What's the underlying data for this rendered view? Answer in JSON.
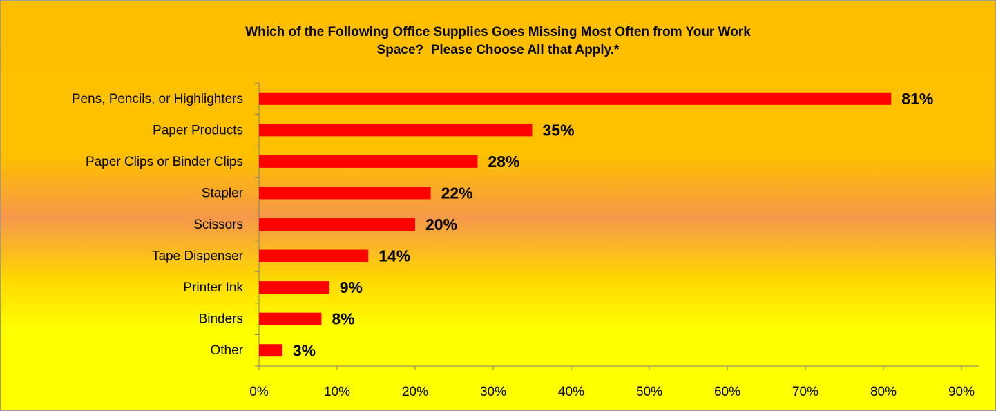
{
  "chart_data": {
    "type": "bar",
    "orientation": "horizontal",
    "title": "Which of the Following Office Supplies Goes Missing Most Often from Your Work Space?  Please Choose All that Apply.*",
    "categories": [
      "Pens, Pencils, or Highlighters",
      "Paper Products",
      "Paper Clips or Binder Clips",
      "Stapler",
      "Scissors",
      "Tape Dispenser",
      "Printer Ink",
      "Binders",
      "Other"
    ],
    "values": [
      81,
      35,
      28,
      22,
      20,
      14,
      9,
      8,
      3
    ],
    "value_labels": [
      "81%",
      "35%",
      "28%",
      "22%",
      "20%",
      "14%",
      "9%",
      "8%",
      "3%"
    ],
    "color": "#ff0000",
    "xlim": [
      0,
      90
    ],
    "xticks": [
      {
        "value": 0,
        "label": "0%"
      },
      {
        "value": 10,
        "label": "10%"
      },
      {
        "value": 20,
        "label": "20%"
      },
      {
        "value": 30,
        "label": "30%"
      },
      {
        "value": 40,
        "label": "40%"
      },
      {
        "value": 50,
        "label": "50%"
      },
      {
        "value": 60,
        "label": "60%"
      },
      {
        "value": 70,
        "label": "70%"
      },
      {
        "value": 80,
        "label": "80%"
      },
      {
        "value": 90,
        "label": "90%"
      }
    ],
    "grid": false
  }
}
